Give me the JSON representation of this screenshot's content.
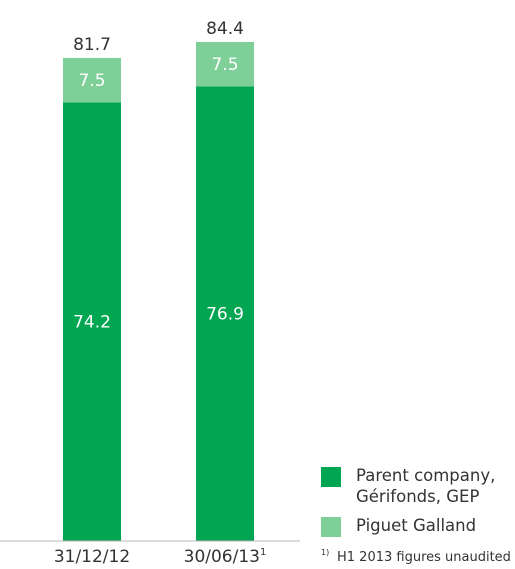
{
  "chart_data": {
    "type": "bar",
    "stacked": true,
    "categories": [
      "31/12/12",
      "30/06/13"
    ],
    "category_superscripts": [
      "",
      "1"
    ],
    "series": [
      {
        "name": "Parent company, Gérifonds, GEP",
        "values": [
          74.2,
          76.9
        ],
        "color": "#00a651"
      },
      {
        "name": "Piguet Galland",
        "values": [
          7.5,
          7.5
        ],
        "color": "#7fcf99"
      }
    ],
    "totals": [
      81.7,
      84.4
    ],
    "ylim": [
      0,
      84.4
    ],
    "grid": false,
    "legend": {
      "placement": "bottom-right",
      "entries": [
        {
          "lines": [
            "Parent company,",
            "Gérifonds, GEP"
          ],
          "color": "#00a651"
        },
        {
          "lines": [
            "Piguet Galland"
          ],
          "color": "#7fcf99"
        }
      ]
    },
    "footnote": {
      "marker": "1)",
      "text": "H1 2013 figures unaudited"
    },
    "baseline_color": "#b8b8b8"
  }
}
